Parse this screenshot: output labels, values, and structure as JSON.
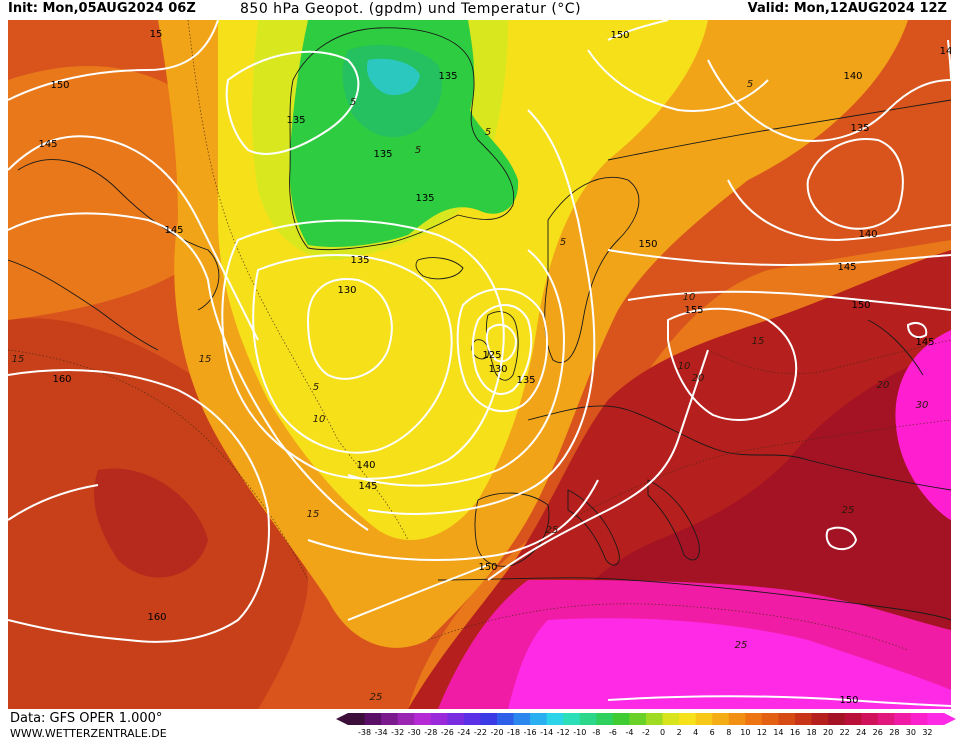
{
  "header": {
    "init": "Init: Mon,05AUG2024 06Z",
    "title": "850 hPa Geopot. (gpdm) und Temperatur (°C)",
    "valid": "Valid: Mon,12AUG2024 12Z"
  },
  "footer": {
    "data_source": "Data: GFS OPER 1.000°",
    "website": "WWW.WETTERZENTRALE.DE"
  },
  "colors": {
    "background_sea": "#d45a1e",
    "cold_green": "#2ecc40",
    "yellow": "#f2e21b",
    "hot_pink": "#ff1fd1",
    "contour": "#ffffff"
  },
  "color_scale": {
    "labels": [
      "-38",
      "-34",
      "-32",
      "-30",
      "-28",
      "-26",
      "-24",
      "-22",
      "-20",
      "-18",
      "-16",
      "-14",
      "-12",
      "-10",
      "-8",
      "-6",
      "-4",
      "-2",
      "0",
      "2",
      "4",
      "6",
      "8",
      "10",
      "12",
      "14",
      "16",
      "18",
      "20",
      "22",
      "24",
      "26",
      "28",
      "30",
      "32"
    ],
    "colors": [
      "#3b0f3a",
      "#5a0f66",
      "#7a1a8c",
      "#9b25b3",
      "#b52ad4",
      "#9a2ad9",
      "#7a2ce0",
      "#5b30e6",
      "#3b3be6",
      "#2d5fe8",
      "#2b86ee",
      "#2ab0f0",
      "#2bd4e8",
      "#2be0b8",
      "#2bd88a",
      "#2ed05e",
      "#3fcc33",
      "#6ad128",
      "#9edb22",
      "#d8e51c",
      "#f5e21a",
      "#f7c818",
      "#f5ad16",
      "#f29013",
      "#ec7411",
      "#e35f12",
      "#d64a14",
      "#c83418",
      "#b51f1d",
      "#a41324",
      "#b9103a",
      "#d0125a",
      "#e2177e",
      "#f11ca6",
      "#fb20cc",
      "#ff2ae6"
    ]
  },
  "map_labels": {
    "geopotential": [
      {
        "text": "150"
      },
      {
        "text": "145"
      },
      {
        "text": "145"
      },
      {
        "text": "135"
      },
      {
        "text": "135"
      },
      {
        "text": "135"
      },
      {
        "text": "135"
      },
      {
        "text": "135"
      },
      {
        "text": "130"
      },
      {
        "text": "125"
      },
      {
        "text": "130"
      },
      {
        "text": "135"
      },
      {
        "text": "140"
      },
      {
        "text": "145"
      },
      {
        "text": "150"
      },
      {
        "text": "160"
      },
      {
        "text": "160"
      },
      {
        "text": "150"
      },
      {
        "text": "150"
      },
      {
        "text": "140"
      },
      {
        "text": "135"
      },
      {
        "text": "140"
      },
      {
        "text": "145"
      },
      {
        "text": "150"
      },
      {
        "text": "155"
      },
      {
        "text": "145"
      },
      {
        "text": "150"
      },
      {
        "text": "14"
      },
      {
        "text": "15"
      }
    ],
    "temperature": [
      {
        "text": "5"
      },
      {
        "text": "5"
      },
      {
        "text": "5"
      },
      {
        "text": "15"
      },
      {
        "text": "10"
      },
      {
        "text": "15"
      },
      {
        "text": "15"
      },
      {
        "text": "5"
      },
      {
        "text": "10"
      },
      {
        "text": "5"
      },
      {
        "text": "15"
      },
      {
        "text": "20"
      },
      {
        "text": "20"
      },
      {
        "text": "30"
      },
      {
        "text": "25"
      },
      {
        "text": "25"
      },
      {
        "text": "25"
      },
      {
        "text": "25"
      },
      {
        "text": "5"
      },
      {
        "text": "10"
      }
    ]
  }
}
